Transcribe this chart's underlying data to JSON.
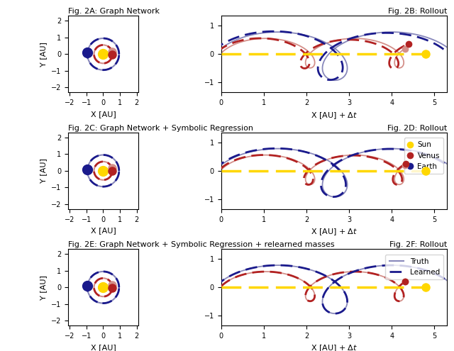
{
  "title_2A": "Fig. 2A: Graph Network",
  "title_2B": "Fig. 2B: Rollout",
  "title_2C": "Fig. 2C: Graph Network + Symbolic Regression",
  "title_2D": "Fig. 2D: Rollout",
  "title_2E": "Fig. 2E: Graph Network + Symbolic Regression + relearned masses",
  "title_2F": "Fig. 2F: Rollout",
  "xlabel_left": "X [AU]",
  "xlabel_right": "X [AU] + $\\Delta t$",
  "ylabel": "Y [AU]",
  "sun_color": "#FFD700",
  "venus_solid": "#B22222",
  "venus_faded": "#D4908A",
  "earth_solid": "#1A1A8C",
  "earth_faded": "#8888BB",
  "r_venus": 0.55,
  "r_earth": 0.95,
  "orbit_xlim": [
    -2.1,
    2.1
  ],
  "orbit_ylim": [
    -2.3,
    2.3
  ],
  "rollout_xlim": [
    0,
    5.3
  ],
  "rollout_ylim": [
    -1.35,
    1.35
  ]
}
